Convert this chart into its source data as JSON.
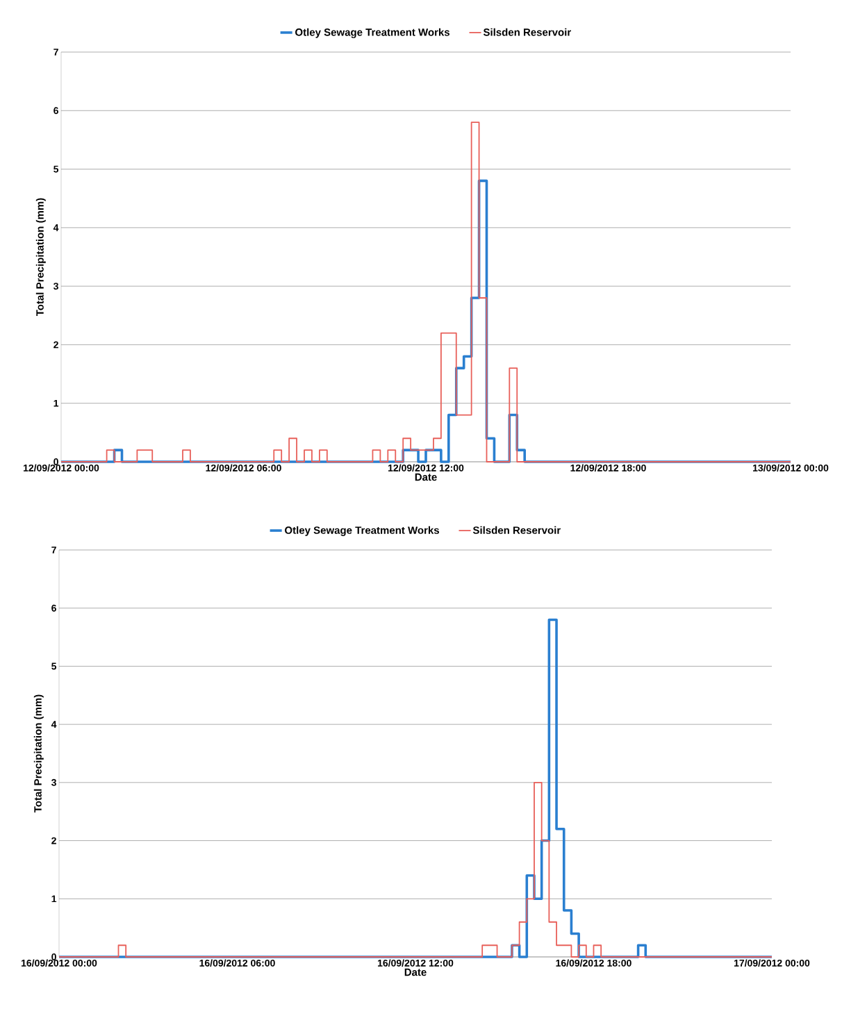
{
  "chart_data": [
    {
      "type": "step",
      "xlabel": "Date",
      "ylabel": "Total Precipitation (mm)",
      "xlim": [
        "2012-09-12T00:00",
        "2012-09-13T00:00"
      ],
      "ylim": [
        0,
        7
      ],
      "xticks": [
        {
          "value": "2012-09-12T00:00",
          "label": "12/09/2012 00:00"
        },
        {
          "value": "2012-09-12T06:00",
          "label": "12/09/2012 06:00"
        },
        {
          "value": "2012-09-12T12:00",
          "label": "12/09/2012 12:00"
        },
        {
          "value": "2012-09-12T18:00",
          "label": "12/09/2012 18:00"
        },
        {
          "value": "2012-09-13T00:00",
          "label": "13/09/2012 00:00"
        }
      ],
      "yticks": [
        0,
        1,
        2,
        3,
        4,
        5,
        6,
        7
      ],
      "grid": "y",
      "legend": "top",
      "marker": "none",
      "series": [
        {
          "name": "Otley Sewage Treatment Works",
          "color": "#2a7fd0",
          "x": [
            "2012-09-12T00:00",
            "2012-09-12T01:45",
            "2012-09-12T02:00",
            "2012-09-12T11:15",
            "2012-09-12T11:45",
            "2012-09-12T12:00",
            "2012-09-12T12:30",
            "2012-09-12T12:45",
            "2012-09-12T13:00",
            "2012-09-12T13:15",
            "2012-09-12T13:30",
            "2012-09-12T13:45",
            "2012-09-12T14:00",
            "2012-09-12T14:15",
            "2012-09-12T14:45",
            "2012-09-12T15:00",
            "2012-09-12T15:15",
            "2012-09-13T00:00"
          ],
          "values": [
            0,
            0.2,
            0,
            0.2,
            0,
            0.2,
            0,
            0.8,
            1.6,
            1.8,
            2.8,
            4.8,
            0.4,
            0,
            0.8,
            0.2,
            0,
            0
          ]
        },
        {
          "name": "Silsden Reservoir",
          "color": "#e8605a",
          "x": [
            "2012-09-12T00:00",
            "2012-09-12T01:30",
            "2012-09-12T01:45",
            "2012-09-12T02:30",
            "2012-09-12T03:00",
            "2012-09-12T04:00",
            "2012-09-12T04:15",
            "2012-09-12T07:00",
            "2012-09-12T07:15",
            "2012-09-12T07:30",
            "2012-09-12T07:45",
            "2012-09-12T08:00",
            "2012-09-12T08:15",
            "2012-09-12T08:30",
            "2012-09-12T08:45",
            "2012-09-12T10:15",
            "2012-09-12T10:30",
            "2012-09-12T10:45",
            "2012-09-12T11:00",
            "2012-09-12T11:15",
            "2012-09-12T11:30",
            "2012-09-12T12:15",
            "2012-09-12T12:30",
            "2012-09-12T13:00",
            "2012-09-12T13:30",
            "2012-09-12T13:45",
            "2012-09-12T14:00",
            "2012-09-12T14:45",
            "2012-09-12T15:00",
            "2012-09-13T00:00"
          ],
          "values": [
            0,
            0.2,
            0,
            0.2,
            0,
            0.2,
            0,
            0.2,
            0,
            0.4,
            0,
            0.2,
            0,
            0.2,
            0,
            0.2,
            0,
            0.2,
            0,
            0.4,
            0.2,
            0.4,
            2.2,
            0.8,
            5.8,
            2.8,
            0,
            1.6,
            0,
            0
          ]
        }
      ]
    },
    {
      "type": "step",
      "xlabel": "Date",
      "ylabel": "Total Precipitation (mm)",
      "xlim": [
        "2012-09-16T00:00",
        "2012-09-17T00:00"
      ],
      "ylim": [
        0,
        7
      ],
      "xticks": [
        {
          "value": "2012-09-16T00:00",
          "label": "16/09/2012 00:00"
        },
        {
          "value": "2012-09-16T06:00",
          "label": "16/09/2012 06:00"
        },
        {
          "value": "2012-09-16T12:00",
          "label": "16/09/2012 12:00"
        },
        {
          "value": "2012-09-16T18:00",
          "label": "16/09/2012 18:00"
        },
        {
          "value": "2012-09-17T00:00",
          "label": "17/09/2012 00:00"
        }
      ],
      "yticks": [
        0,
        1,
        2,
        3,
        4,
        5,
        6,
        7
      ],
      "grid": "y",
      "legend": "top",
      "marker": "none",
      "series": [
        {
          "name": "Otley Sewage Treatment Works",
          "color": "#2a7fd0",
          "x": [
            "2012-09-16T00:00",
            "2012-09-16T15:15",
            "2012-09-16T15:30",
            "2012-09-16T15:45",
            "2012-09-16T16:00",
            "2012-09-16T16:15",
            "2012-09-16T16:30",
            "2012-09-16T16:45",
            "2012-09-16T17:00",
            "2012-09-16T17:15",
            "2012-09-16T17:30",
            "2012-09-16T19:30",
            "2012-09-16T19:45",
            "2012-09-17T00:00"
          ],
          "values": [
            0,
            0.2,
            0,
            1.4,
            1.0,
            2.0,
            5.8,
            2.2,
            0.8,
            0.4,
            0,
            0.2,
            0,
            0
          ]
        },
        {
          "name": "Silsden Reservoir",
          "color": "#e8605a",
          "x": [
            "2012-09-16T00:00",
            "2012-09-16T02:00",
            "2012-09-16T02:15",
            "2012-09-16T14:15",
            "2012-09-16T14:45",
            "2012-09-16T15:15",
            "2012-09-16T15:30",
            "2012-09-16T15:45",
            "2012-09-16T16:00",
            "2012-09-16T16:15",
            "2012-09-16T16:30",
            "2012-09-16T16:45",
            "2012-09-16T17:15",
            "2012-09-16T17:30",
            "2012-09-16T17:45",
            "2012-09-16T18:00",
            "2012-09-16T18:15",
            "2012-09-17T00:00"
          ],
          "values": [
            0,
            0.2,
            0,
            0.2,
            0,
            0.2,
            0.6,
            1.0,
            3.0,
            2.0,
            0.6,
            0.2,
            0,
            0.2,
            0,
            0.2,
            0,
            0
          ]
        }
      ]
    }
  ]
}
